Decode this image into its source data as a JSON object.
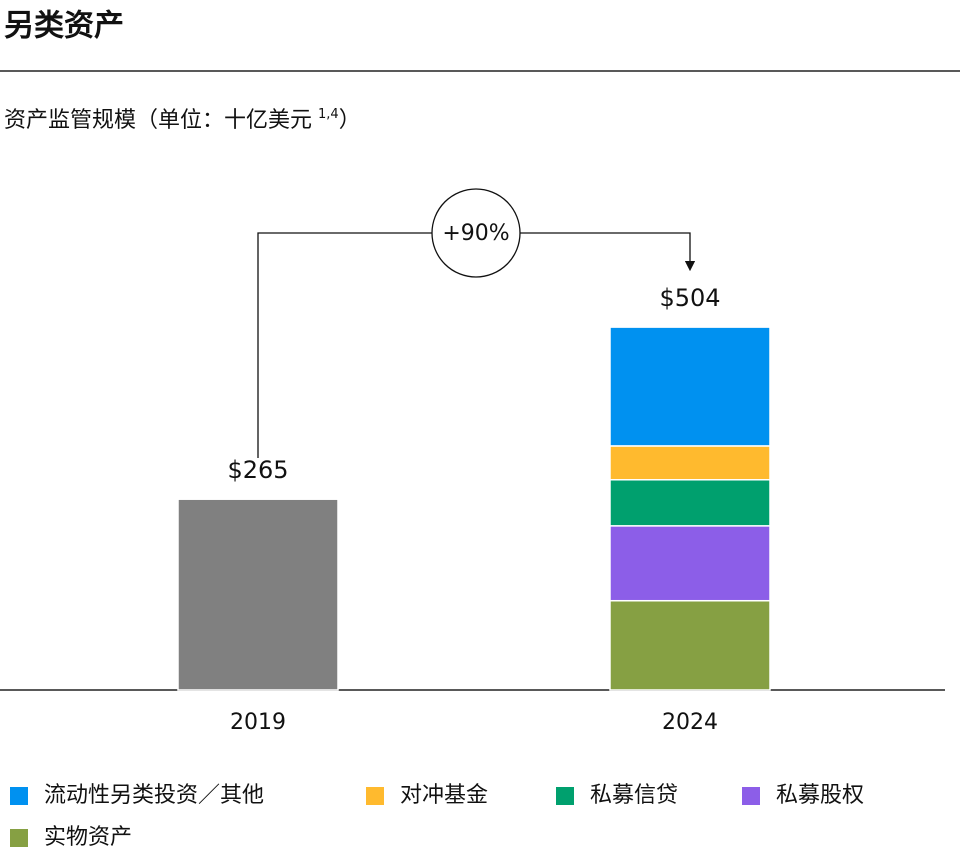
{
  "chart_data": {
    "type": "stacked_bar",
    "title": "另类资产",
    "subtitle": "资产监管规模（单位：十亿美元",
    "subtitle_note": "1,4",
    "subtitle_end": "）",
    "annotation": "+90%",
    "categories": [
      "2019",
      "2024"
    ],
    "totals": [
      265,
      504
    ],
    "total_labels": [
      "$265",
      "$504"
    ],
    "ylim": [
      0,
      550
    ],
    "series": [
      {
        "color": "#808080",
        "values": [
          265,
          null
        ]
      },
      {
        "name": "流动性另类投资／其他",
        "color": "#0091f0",
        "values": [
          null,
          165
        ]
      },
      {
        "name": "对冲基金",
        "color": "#ffba2e",
        "values": [
          null,
          47
        ]
      },
      {
        "name": "私募信贷",
        "color": "#00a06e",
        "values": [
          null,
          64
        ]
      },
      {
        "name": "私募股权",
        "color": "#8c5ee8",
        "values": [
          null,
          104
        ]
      },
      {
        "name": "实物资产",
        "color": "#86a043",
        "values": [
          null,
          124
        ]
      }
    ]
  }
}
